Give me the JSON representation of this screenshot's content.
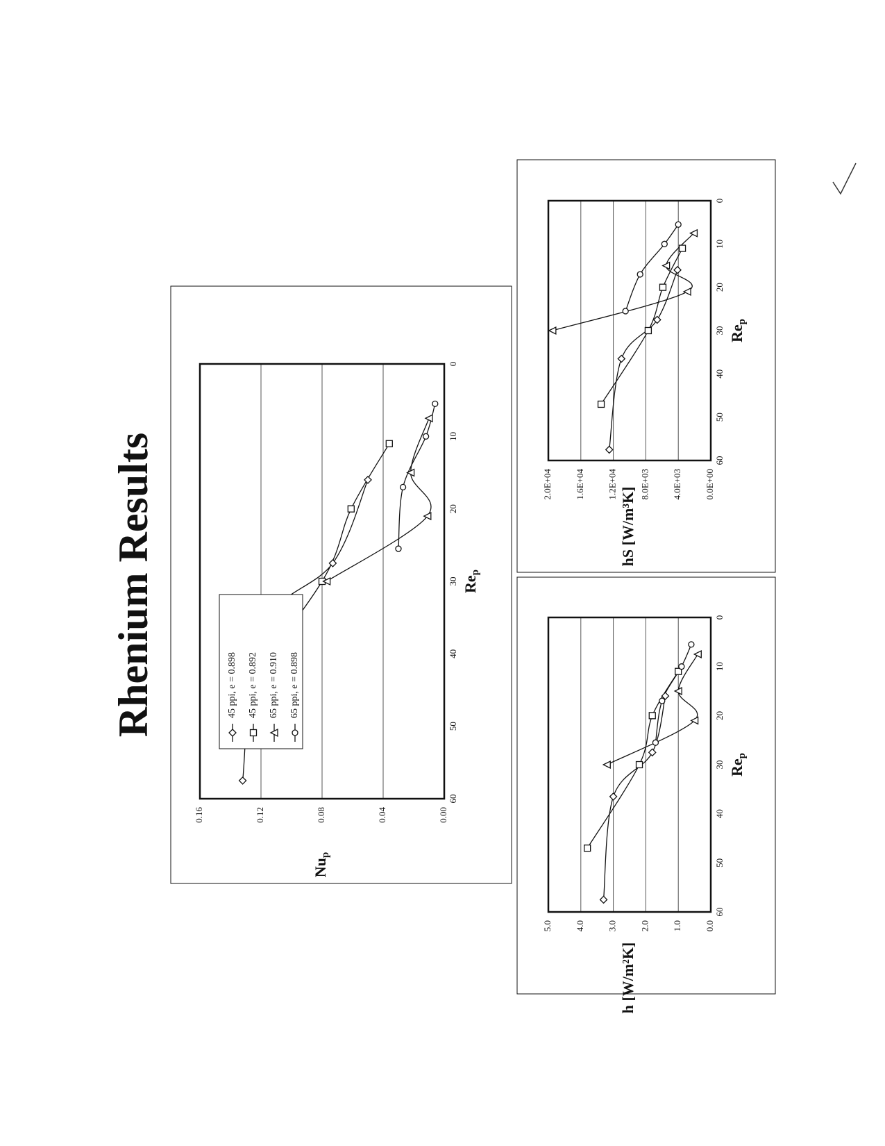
{
  "page": {
    "title": "Rhenium Results",
    "ink_color": "#111111",
    "paper_color": "#ffffff",
    "gridline_color": "#555555"
  },
  "chart_data": [
    {
      "id": "nu",
      "type": "line",
      "title": "",
      "xlabel": "Re",
      "xlabel_sub": "p",
      "ylabel": "Nu",
      "ylabel_sub": "p",
      "xlim": [
        0,
        60
      ],
      "ylim": [
        0,
        0.16
      ],
      "xticks": [
        0,
        10,
        20,
        30,
        40,
        50,
        60
      ],
      "yticks": [
        0,
        0.04,
        0.08,
        0.12,
        0.16
      ],
      "xtick_labels": [
        "0",
        "10",
        "20",
        "30",
        "40",
        "50",
        "60"
      ],
      "ytick_labels": [
        "0.00",
        "0.04",
        "0.08",
        "0.12",
        "0.16"
      ],
      "grid": "horizontal",
      "legend": "inside-left",
      "series": [
        {
          "name": "45 ppi, e = 0.898",
          "marker": "diamond",
          "x": [
            16.0,
            27.5,
            36.5,
            57.5
          ],
          "y": [
            0.05,
            0.073,
            0.12,
            0.132
          ]
        },
        {
          "name": "45 ppi, e = 0.892",
          "marker": "square",
          "x": [
            11.0,
            20.0,
            30.0,
            47.0
          ],
          "y": [
            0.036,
            0.061,
            0.08,
            0.139
          ]
        },
        {
          "name": "65 ppi, e = 0.910",
          "marker": "triangle",
          "x": [
            7.5,
            15.0,
            21.0,
            30.0
          ],
          "y": [
            0.01,
            0.022,
            0.011,
            0.077
          ]
        },
        {
          "name": "65 ppi, e = 0.898",
          "marker": "circle",
          "x": [
            5.5,
            10.0,
            17.0,
            25.5
          ],
          "y": [
            0.006,
            0.012,
            0.027,
            0.03
          ]
        }
      ]
    },
    {
      "id": "h",
      "type": "line",
      "title": "",
      "xlabel": "Re",
      "xlabel_sub": "p",
      "ylabel": "h [W/m²K]",
      "xlim": [
        0,
        60
      ],
      "ylim": [
        0,
        5
      ],
      "xticks": [
        0,
        10,
        20,
        30,
        40,
        50,
        60
      ],
      "yticks": [
        0,
        1,
        2,
        3,
        4,
        5
      ],
      "xtick_labels": [
        "0",
        "10",
        "20",
        "30",
        "40",
        "50",
        "60"
      ],
      "ytick_labels": [
        "0.0",
        "1.0",
        "2.0",
        "3.0",
        "4.0",
        "5.0"
      ],
      "grid": "horizontal",
      "legend": "none",
      "series": [
        {
          "name": "45 ppi, e = 0.898",
          "marker": "diamond",
          "x": [
            16.0,
            27.5,
            36.5,
            57.5
          ],
          "y": [
            1.4,
            1.8,
            3.0,
            3.3
          ]
        },
        {
          "name": "45 ppi, e = 0.892",
          "marker": "square",
          "x": [
            11.0,
            20.0,
            30.0,
            47.0
          ],
          "y": [
            1.0,
            1.8,
            2.2,
            3.8
          ]
        },
        {
          "name": "65 ppi, e = 0.910",
          "marker": "triangle",
          "x": [
            7.5,
            15.0,
            21.0,
            30.0
          ],
          "y": [
            0.4,
            1.0,
            0.5,
            3.2
          ]
        },
        {
          "name": "65 ppi, e = 0.898",
          "marker": "circle",
          "x": [
            5.5,
            10.0,
            17.0,
            25.5
          ],
          "y": [
            0.6,
            0.9,
            1.5,
            1.7
          ]
        }
      ]
    },
    {
      "id": "hs",
      "type": "line",
      "title": "",
      "xlabel": "Re",
      "xlabel_sub": "p",
      "ylabel": "hS [W/m³K]",
      "xlim": [
        0,
        60
      ],
      "ylim": [
        0,
        20000
      ],
      "xticks": [
        0,
        10,
        20,
        30,
        40,
        50,
        60
      ],
      "yticks": [
        0,
        4000,
        8000,
        12000,
        16000,
        20000
      ],
      "xtick_labels": [
        "0",
        "10",
        "20",
        "30",
        "40",
        "50",
        "60"
      ],
      "ytick_labels": [
        "0.0E+00",
        "4.0E+03",
        "8.0E+03",
        "1.2E+04",
        "1.6E+04",
        "2.0E+04"
      ],
      "grid": "horizontal",
      "legend": "none",
      "series": [
        {
          "name": "45 ppi, e = 0.898",
          "marker": "diamond",
          "x": [
            16.0,
            27.5,
            36.5,
            57.5
          ],
          "y": [
            4100,
            6600,
            11000,
            12500
          ]
        },
        {
          "name": "45 ppi, e = 0.892",
          "marker": "square",
          "x": [
            11.0,
            20.0,
            30.0,
            47.0
          ],
          "y": [
            3500,
            5900,
            7700,
            13500
          ]
        },
        {
          "name": "65 ppi, e = 0.910",
          "marker": "triangle",
          "x": [
            7.5,
            15.0,
            21.0,
            30.0
          ],
          "y": [
            2100,
            5500,
            2900,
            19500
          ]
        },
        {
          "name": "65 ppi, e = 0.898",
          "marker": "circle",
          "x": [
            5.5,
            10.0,
            17.0,
            25.5
          ],
          "y": [
            4000,
            5700,
            8700,
            10500
          ]
        }
      ]
    }
  ]
}
